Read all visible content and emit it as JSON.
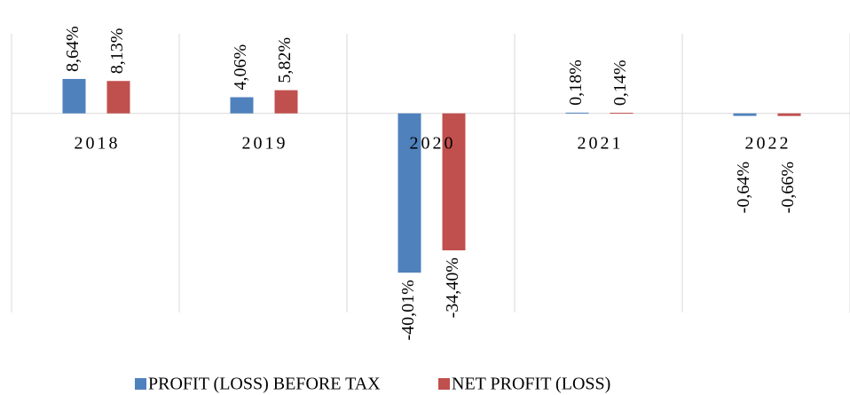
{
  "chart_data": {
    "type": "bar",
    "categories": [
      "2018",
      "2019",
      "2020",
      "2021",
      "2022"
    ],
    "series": [
      {
        "name": "PROFIT (LOSS) BEFORE TAX",
        "color": "#4f81bd",
        "values": [
          8.64,
          4.06,
          -40.01,
          0.18,
          -0.64
        ],
        "value_labels": [
          "8,64%",
          "4,06%",
          "-40,01%",
          "0,18%",
          "-0,64%"
        ]
      },
      {
        "name": "NET PROFIT (LOSS)",
        "color": "#c0504d",
        "values": [
          8.13,
          5.82,
          -34.4,
          0.14,
          -0.66
        ],
        "value_labels": [
          "8,13%",
          "5,82%",
          "-34,40%",
          "0,14%",
          "-0,66%"
        ]
      }
    ],
    "ylim": [
      -50,
      20
    ],
    "legend": "bottom"
  }
}
